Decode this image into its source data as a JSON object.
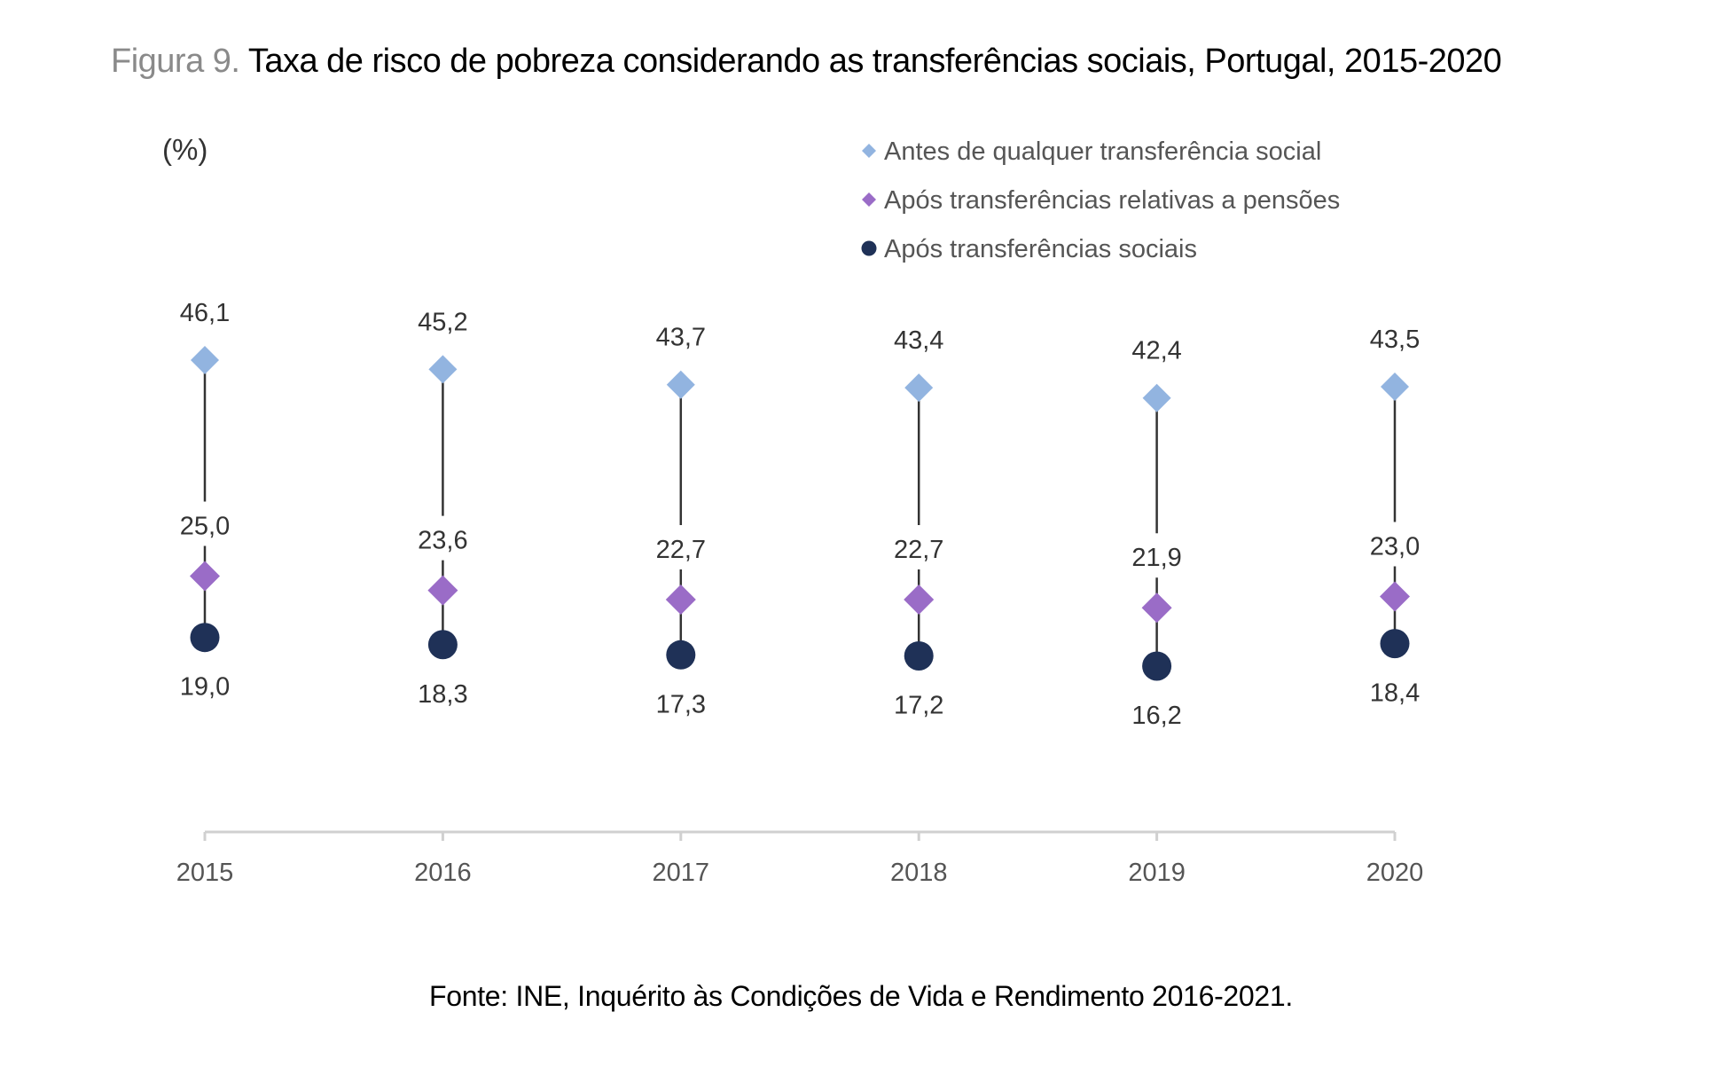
{
  "figure": {
    "prefix": "Figura 9.",
    "title": "Taxa de risco de pobreza considerando as transferências sociais, Portugal, 2015-2020",
    "source_label": "Fonte:",
    "source_text": "INE, Inquérito às Condições de Vida e Rendimento 2016-2021."
  },
  "chart_data": {
    "type": "scatter",
    "title": "Taxa de risco de pobreza considerando as transferências sociais, Portugal, 2015-2020",
    "unit_label": "(%)",
    "categories": [
      "2015",
      "2016",
      "2017",
      "2018",
      "2019",
      "2020"
    ],
    "ylim": [
      0,
      55
    ],
    "grid": false,
    "legend_position": "top-right",
    "series": [
      {
        "name": "Antes de qualquer transferência social",
        "marker": "diamond",
        "color": "#92b4e0",
        "values": [
          46.1,
          45.2,
          43.7,
          43.4,
          42.4,
          43.5
        ],
        "labels": [
          "46,1",
          "45,2",
          "43,7",
          "43,4",
          "42,4",
          "43,5"
        ]
      },
      {
        "name": "Após transferências relativas a pensões",
        "marker": "diamond",
        "color": "#9a6cc7",
        "values": [
          25.0,
          23.6,
          22.7,
          22.7,
          21.9,
          23.0
        ],
        "labels": [
          "25,0",
          "23,6",
          "22,7",
          "22,7",
          "21,9",
          "23,0"
        ]
      },
      {
        "name": "Após transferências sociais",
        "marker": "circle",
        "color": "#1f3157",
        "values": [
          19.0,
          18.3,
          17.3,
          17.2,
          16.2,
          18.4
        ],
        "labels": [
          "19,0",
          "18,3",
          "17,3",
          "17,2",
          "16,2",
          "18,4"
        ]
      }
    ],
    "connector_color": "#333333"
  }
}
